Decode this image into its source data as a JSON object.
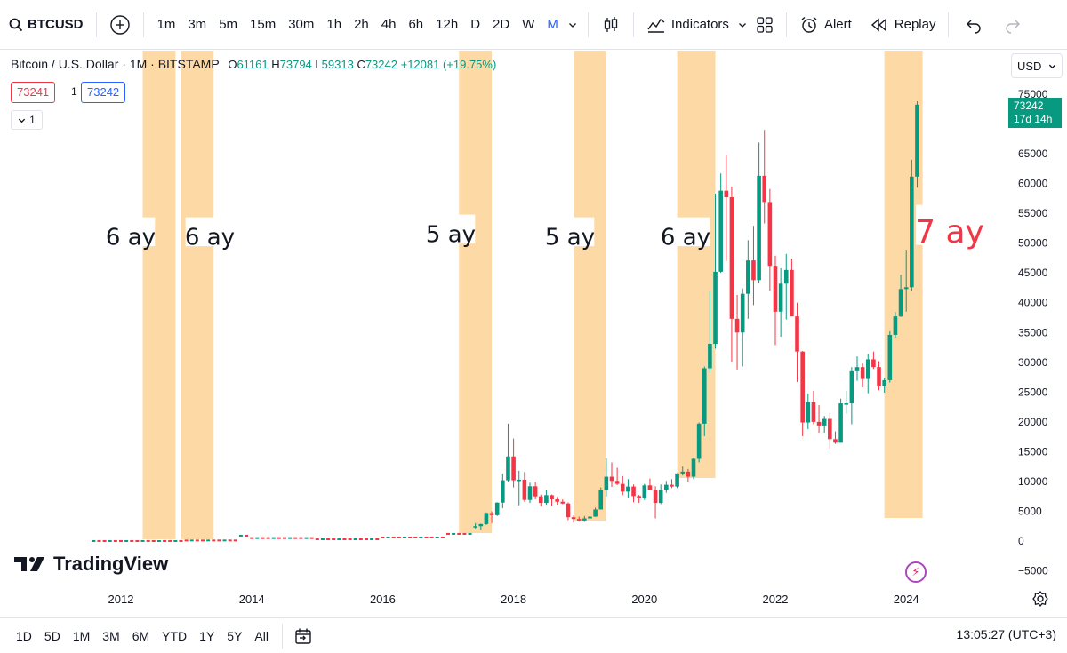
{
  "toolbar": {
    "symbol": "BTCUSD",
    "timeframes": [
      "1m",
      "3m",
      "5m",
      "15m",
      "30m",
      "1h",
      "2h",
      "4h",
      "6h",
      "12h",
      "D",
      "2D",
      "W",
      "M"
    ],
    "active_timeframe": "M",
    "indicators_label": "Indicators",
    "alert_label": "Alert",
    "replay_label": "Replay"
  },
  "legend": {
    "title": "Bitcoin / U.S. Dollar · 1M · BITSTAMP",
    "o_label": "O",
    "o_val": "61161",
    "h_label": "H",
    "h_val": "73794",
    "l_label": "L",
    "l_val": "59313",
    "c_label": "C",
    "c_val": "73242",
    "change": "+12081 (+19.75%)",
    "bid": "73241",
    "spread": "1",
    "ask": "73242",
    "collapse_count": "1"
  },
  "currency": "USD",
  "last_price": {
    "value": "73242",
    "countdown": "17d 14h"
  },
  "watermark": "TradingView",
  "bottombar": {
    "ranges": [
      "1D",
      "5D",
      "1M",
      "3M",
      "6M",
      "YTD",
      "1Y",
      "5Y",
      "All"
    ],
    "clock": "13:05:27 (UTC+3)"
  },
  "colors": {
    "up": "#089981",
    "down": "#f23645",
    "band": "#fdd9a5",
    "annotation": "#f23645"
  },
  "chart_data": {
    "type": "candlestick",
    "ylim": [
      -7500,
      77000
    ],
    "y_ticks": [
      75000,
      70000,
      65000,
      60000,
      55000,
      50000,
      45000,
      40000,
      35000,
      30000,
      25000,
      20000,
      15000,
      10000,
      5000,
      0,
      -5000
    ],
    "x_ticks": [
      "2012",
      "2014",
      "2016",
      "2018",
      "2020",
      "2022",
      "2024"
    ],
    "candles": [
      {
        "t": "2017-06",
        "o": 2300,
        "h": 3000,
        "l": 2100,
        "c": 2500
      },
      {
        "t": "2017-07",
        "o": 2500,
        "h": 2900,
        "l": 1900,
        "c": 2850
      },
      {
        "t": "2017-08",
        "o": 2850,
        "h": 4800,
        "l": 2700,
        "c": 4700
      },
      {
        "t": "2017-09",
        "o": 4700,
        "h": 5000,
        "l": 3000,
        "c": 4350
      },
      {
        "t": "2017-10",
        "o": 4350,
        "h": 6500,
        "l": 4200,
        "c": 6450
      },
      {
        "t": "2017-11",
        "o": 6450,
        "h": 11300,
        "l": 5500,
        "c": 10200
      },
      {
        "t": "2017-12",
        "o": 10200,
        "h": 19700,
        "l": 10000,
        "c": 14200
      },
      {
        "t": "2018-01",
        "o": 14200,
        "h": 17200,
        "l": 9000,
        "c": 10200
      },
      {
        "t": "2018-02",
        "o": 10200,
        "h": 11800,
        "l": 6000,
        "c": 10300
      },
      {
        "t": "2018-03",
        "o": 10300,
        "h": 11600,
        "l": 6600,
        "c": 6900
      },
      {
        "t": "2018-04",
        "o": 6900,
        "h": 9800,
        "l": 6400,
        "c": 9200
      },
      {
        "t": "2018-05",
        "o": 9200,
        "h": 9900,
        "l": 7000,
        "c": 7500
      },
      {
        "t": "2018-06",
        "o": 7500,
        "h": 7800,
        "l": 5800,
        "c": 6400
      },
      {
        "t": "2018-07",
        "o": 6400,
        "h": 8500,
        "l": 6100,
        "c": 7700
      },
      {
        "t": "2018-08",
        "o": 7700,
        "h": 7800,
        "l": 5900,
        "c": 7000
      },
      {
        "t": "2018-09",
        "o": 7000,
        "h": 7400,
        "l": 6100,
        "c": 6600
      },
      {
        "t": "2018-10",
        "o": 6600,
        "h": 7000,
        "l": 6200,
        "c": 6300
      },
      {
        "t": "2018-11",
        "o": 6300,
        "h": 6500,
        "l": 3500,
        "c": 4000
      },
      {
        "t": "2018-12",
        "o": 4000,
        "h": 4300,
        "l": 3100,
        "c": 3700
      },
      {
        "t": "2019-01",
        "o": 3700,
        "h": 4100,
        "l": 3400,
        "c": 3450
      },
      {
        "t": "2019-02",
        "o": 3450,
        "h": 4200,
        "l": 3350,
        "c": 3800
      },
      {
        "t": "2019-03",
        "o": 3800,
        "h": 4100,
        "l": 3700,
        "c": 4100
      },
      {
        "t": "2019-04",
        "o": 4100,
        "h": 5600,
        "l": 4050,
        "c": 5300
      },
      {
        "t": "2019-05",
        "o": 5300,
        "h": 9000,
        "l": 5300,
        "c": 8550
      },
      {
        "t": "2019-06",
        "o": 8550,
        "h": 13900,
        "l": 7500,
        "c": 10800
      },
      {
        "t": "2019-07",
        "o": 10800,
        "h": 13200,
        "l": 9100,
        "c": 10100
      },
      {
        "t": "2019-08",
        "o": 10100,
        "h": 12300,
        "l": 9400,
        "c": 9600
      },
      {
        "t": "2019-09",
        "o": 9600,
        "h": 10900,
        "l": 7700,
        "c": 8300
      },
      {
        "t": "2019-10",
        "o": 8300,
        "h": 10400,
        "l": 7300,
        "c": 9150
      },
      {
        "t": "2019-11",
        "o": 9150,
        "h": 9500,
        "l": 6500,
        "c": 7550
      },
      {
        "t": "2019-12",
        "o": 7550,
        "h": 7750,
        "l": 6400,
        "c": 7200
      },
      {
        "t": "2020-01",
        "o": 7200,
        "h": 9600,
        "l": 6900,
        "c": 9350
      },
      {
        "t": "2020-02",
        "o": 9350,
        "h": 10500,
        "l": 8500,
        "c": 8550
      },
      {
        "t": "2020-03",
        "o": 8550,
        "h": 9200,
        "l": 3800,
        "c": 6400
      },
      {
        "t": "2020-04",
        "o": 6400,
        "h": 9500,
        "l": 6200,
        "c": 8650
      },
      {
        "t": "2020-05",
        "o": 8650,
        "h": 10100,
        "l": 8100,
        "c": 9450
      },
      {
        "t": "2020-06",
        "o": 9450,
        "h": 10400,
        "l": 8900,
        "c": 9150
      },
      {
        "t": "2020-07",
        "o": 9150,
        "h": 11400,
        "l": 8900,
        "c": 11350
      },
      {
        "t": "2020-08",
        "o": 11350,
        "h": 12500,
        "l": 11000,
        "c": 11650
      },
      {
        "t": "2020-09",
        "o": 11650,
        "h": 12100,
        "l": 9900,
        "c": 10800
      },
      {
        "t": "2020-10",
        "o": 10800,
        "h": 14000,
        "l": 10400,
        "c": 13800
      },
      {
        "t": "2020-11",
        "o": 13800,
        "h": 19900,
        "l": 13200,
        "c": 19700
      },
      {
        "t": "2020-12",
        "o": 19700,
        "h": 29300,
        "l": 17600,
        "c": 29000
      },
      {
        "t": "2021-01",
        "o": 29000,
        "h": 41900,
        "l": 28200,
        "c": 33100
      },
      {
        "t": "2021-02",
        "o": 33100,
        "h": 58300,
        "l": 32300,
        "c": 45200
      },
      {
        "t": "2021-03",
        "o": 45200,
        "h": 61700,
        "l": 45000,
        "c": 58800
      },
      {
        "t": "2021-04",
        "o": 58800,
        "h": 64800,
        "l": 47000,
        "c": 57700
      },
      {
        "t": "2021-05",
        "o": 57700,
        "h": 59500,
        "l": 30000,
        "c": 37300
      },
      {
        "t": "2021-06",
        "o": 37300,
        "h": 41300,
        "l": 28800,
        "c": 35000
      },
      {
        "t": "2021-07",
        "o": 35000,
        "h": 42400,
        "l": 29300,
        "c": 41500
      },
      {
        "t": "2021-08",
        "o": 41500,
        "h": 50500,
        "l": 37300,
        "c": 47100
      },
      {
        "t": "2021-09",
        "o": 47100,
        "h": 52900,
        "l": 39600,
        "c": 43800
      },
      {
        "t": "2021-10",
        "o": 43800,
        "h": 66900,
        "l": 43300,
        "c": 61300
      },
      {
        "t": "2021-11",
        "o": 61300,
        "h": 69000,
        "l": 53300,
        "c": 56900
      },
      {
        "t": "2021-12",
        "o": 56900,
        "h": 59100,
        "l": 42000,
        "c": 46200
      },
      {
        "t": "2022-01",
        "o": 46200,
        "h": 47900,
        "l": 32900,
        "c": 38500
      },
      {
        "t": "2022-02",
        "o": 38500,
        "h": 45800,
        "l": 34300,
        "c": 43200
      },
      {
        "t": "2022-03",
        "o": 43200,
        "h": 48200,
        "l": 37200,
        "c": 45500
      },
      {
        "t": "2022-04",
        "o": 45500,
        "h": 47400,
        "l": 37700,
        "c": 37700
      },
      {
        "t": "2022-05",
        "o": 37700,
        "h": 40000,
        "l": 26700,
        "c": 31800
      },
      {
        "t": "2022-06",
        "o": 31800,
        "h": 31900,
        "l": 17600,
        "c": 19900
      },
      {
        "t": "2022-07",
        "o": 19900,
        "h": 24700,
        "l": 18800,
        "c": 23300
      },
      {
        "t": "2022-08",
        "o": 23300,
        "h": 25200,
        "l": 19600,
        "c": 20000
      },
      {
        "t": "2022-09",
        "o": 20000,
        "h": 22800,
        "l": 18200,
        "c": 19400
      },
      {
        "t": "2022-10",
        "o": 19400,
        "h": 21000,
        "l": 18200,
        "c": 20500
      },
      {
        "t": "2022-11",
        "o": 20500,
        "h": 21500,
        "l": 15500,
        "c": 17100
      },
      {
        "t": "2022-12",
        "o": 17100,
        "h": 18400,
        "l": 16300,
        "c": 16500
      },
      {
        "t": "2023-01",
        "o": 16500,
        "h": 23900,
        "l": 16500,
        "c": 23100
      },
      {
        "t": "2023-02",
        "o": 23100,
        "h": 25200,
        "l": 21400,
        "c": 23100
      },
      {
        "t": "2023-03",
        "o": 23100,
        "h": 29200,
        "l": 19600,
        "c": 28500
      },
      {
        "t": "2023-04",
        "o": 28500,
        "h": 31000,
        "l": 26900,
        "c": 29200
      },
      {
        "t": "2023-05",
        "o": 29200,
        "h": 29800,
        "l": 25800,
        "c": 27200
      },
      {
        "t": "2023-06",
        "o": 27200,
        "h": 31400,
        "l": 24800,
        "c": 30500
      },
      {
        "t": "2023-07",
        "o": 30500,
        "h": 31800,
        "l": 28900,
        "c": 29200
      },
      {
        "t": "2023-08",
        "o": 29200,
        "h": 30200,
        "l": 25300,
        "c": 26000
      },
      {
        "t": "2023-09",
        "o": 26000,
        "h": 27400,
        "l": 24900,
        "c": 27000
      },
      {
        "t": "2023-10",
        "o": 27000,
        "h": 35200,
        "l": 26600,
        "c": 34600
      },
      {
        "t": "2023-11",
        "o": 34600,
        "h": 38400,
        "l": 34100,
        "c": 37700
      },
      {
        "t": "2023-12",
        "o": 37700,
        "h": 44700,
        "l": 37600,
        "c": 42300
      },
      {
        "t": "2024-01",
        "o": 42300,
        "h": 48900,
        "l": 38500,
        "c": 42600
      },
      {
        "t": "2024-02",
        "o": 42600,
        "h": 64000,
        "l": 41900,
        "c": 61161
      },
      {
        "t": "2024-03",
        "o": 61161,
        "h": 73794,
        "l": 59313,
        "c": 73242
      }
    ],
    "highlight_bands": [
      {
        "from": "2012-05",
        "to": "2012-10"
      },
      {
        "from": "2012-12",
        "to": "2013-05"
      },
      {
        "from": "2017-03",
        "to": "2017-08"
      },
      {
        "from": "2018-12",
        "to": "2019-05"
      },
      {
        "from": "2020-07",
        "to": "2021-01"
      },
      {
        "from": "2023-09",
        "to": "2024-03"
      }
    ],
    "annotations": [
      {
        "text": "6 ay"
      },
      {
        "text": "6 ay"
      },
      {
        "text": "5 ay"
      },
      {
        "text": "5 ay"
      },
      {
        "text": "6 ay"
      },
      {
        "text": "7 ay"
      }
    ]
  }
}
